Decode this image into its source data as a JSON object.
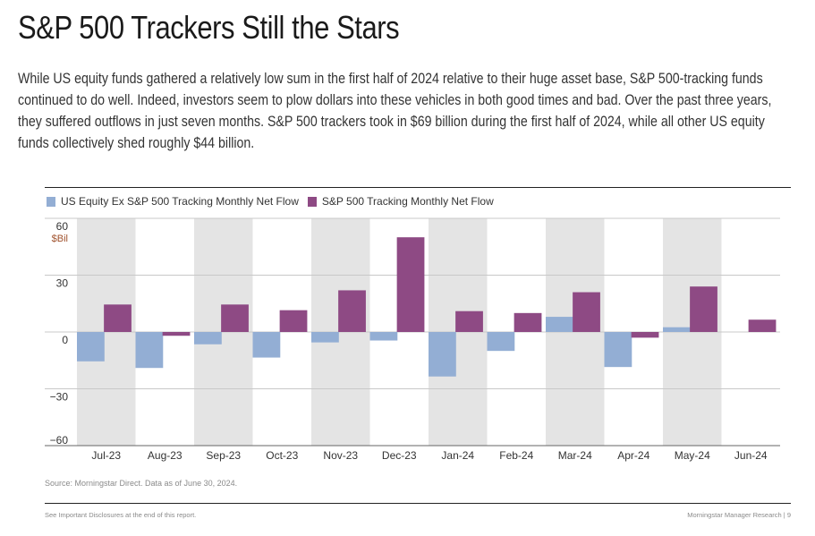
{
  "header": {
    "title": "S&P 500 Trackers Still the Stars",
    "intro": "While US equity funds gathered a relatively low sum in the first half of 2024 relative to their huge asset base, S&P 500-tracking funds continued to do well. Indeed, investors seem to plow dollars into these vehicles in both good times and bad. Over the past three years, they suffered outflows in just seven months. S&P 500 trackers took in $69 billion during the first half of 2024, while all other US equity funds collectively shed roughly $44 billion."
  },
  "chart_data": {
    "type": "bar",
    "categories": [
      "Jul-23",
      "Aug-23",
      "Sep-23",
      "Oct-23",
      "Nov-23",
      "Dec-23",
      "Jan-24",
      "Feb-24",
      "Mar-24",
      "Apr-24",
      "May-24",
      "Jun-24"
    ],
    "series": [
      {
        "name": "US Equity Ex S&P 500 Tracking Monthly Net Flow",
        "color": "#93aed4",
        "values": [
          -15.5,
          -19,
          -6.5,
          -13.5,
          -5.5,
          -4.5,
          -23.5,
          -10,
          8,
          -18.5,
          2.5,
          0
        ]
      },
      {
        "name": "S&P 500 Tracking Monthly Net Flow",
        "color": "#8e4a84",
        "values": [
          14.5,
          -2,
          14.5,
          11.5,
          22,
          50,
          11,
          10,
          21,
          -3,
          24,
          6.5
        ]
      }
    ],
    "unit_label": "$Bil",
    "yticks": [
      60,
      30,
      0,
      -30,
      -60
    ],
    "ylim": [
      -60,
      60
    ],
    "ytick_labels": [
      "60",
      "30",
      "0",
      "−30",
      "−60"
    ],
    "shaded_band_color": "#e4e4e4",
    "grid": true,
    "legend_position": "top-left"
  },
  "footer": {
    "source": "Source: Morningstar Direct. Data as of June 30, 2024.",
    "disclosure": "See Important Disclosures at the end of this report.",
    "brand": "Morningstar Manager Research",
    "page": "9"
  }
}
